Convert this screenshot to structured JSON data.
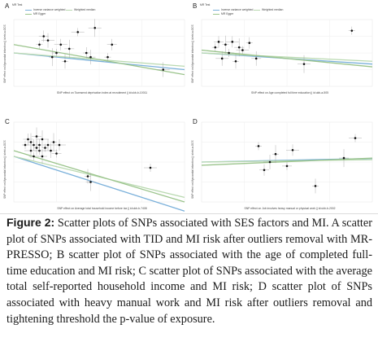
{
  "figure": {
    "legend_title": "MR Test",
    "legend_items": [
      {
        "label": "Inverse variance weighted",
        "color": "#7ab0da"
      },
      {
        "label": "Weighted median",
        "color": "#b9d9b0"
      },
      {
        "label": "MR Egger",
        "color": "#9bc48c"
      }
    ],
    "panels": [
      {
        "letter": "A",
        "ylabel": "SNP effect on Myocardial infarction || id:ebi-a-GCST011364",
        "xlabel": "SNP effect on Townsend deprivation index at recruitment || id:ukb-b-10011"
      },
      {
        "letter": "B",
        "ylabel": "SNP effect on Myocardial infarction || id:ebi-a-GCST011364",
        "xlabel": "SNP effect on Age completed full time education || id:ukb-a-505"
      },
      {
        "letter": "C",
        "ylabel": "SNP effect on Myocardial infarction || id:ebi-a-GCST011364",
        "xlabel": "SNP effect on Average total household income before tax || id:ukb-b-7408"
      },
      {
        "letter": "D",
        "ylabel": "SNP effect on Myocardial infarction || id:ebi-a-GCST011364",
        "xlabel": "SNP effect on Job involves heavy manual or physical work || id:ukb-b-2002"
      }
    ]
  },
  "caption": {
    "label": "Figure 2:",
    "text": "Scatter plots of SNPs associated with SES factors and MI. A scatter plot of SNPs associated with TID and MI risk after outliers removal with MR-PRESSO; B scatter plot of SNPs associated with the age of completed full-time education and MI risk; C scatter plot of SNPs associated with the average total self-reported household income and MI risk; D scatter plot of SNPs associated with heavy manual work and MI risk after outliers removal and tightening threshold the p-value of exposure."
  },
  "chart_data": [
    {
      "type": "scatter",
      "panel": "A",
      "xlabel": "SNP effect on Townsend deprivation index at recruitment || id:ukb-b-10011",
      "ylabel": "SNP effect on Myocardial infarction || id:ebi-a-GCST011364",
      "xlim": [
        0.0,
        0.04
      ],
      "ylim": [
        -0.08,
        0.08
      ],
      "x": [
        0.006,
        0.007,
        0.008,
        0.009,
        0.01,
        0.011,
        0.012,
        0.013,
        0.015,
        0.017,
        0.018,
        0.019,
        0.022,
        0.023,
        0.035
      ],
      "y": [
        0.02,
        0.04,
        0.03,
        -0.01,
        0.0,
        0.02,
        -0.02,
        0.01,
        0.05,
        0.0,
        -0.01,
        0.06,
        -0.01,
        0.02,
        -0.04
      ],
      "lines": [
        {
          "name": "Inverse variance weighted",
          "slope": -1.0,
          "intercept": 0
        },
        {
          "name": "Weighted median",
          "slope": -0.8,
          "intercept": 0
        },
        {
          "name": "MR Egger",
          "slope": -1.8,
          "intercept": 0.02
        }
      ]
    },
    {
      "type": "scatter",
      "panel": "B",
      "xlabel": "SNP effect on Age completed full time education || id:ukb-a-505",
      "ylabel": "SNP effect on Myocardial infarction || id:ebi-a-GCST011364",
      "xlim": [
        0.0,
        0.05
      ],
      "ylim": [
        -0.06,
        0.06
      ],
      "x": [
        0.004,
        0.005,
        0.006,
        0.007,
        0.008,
        0.009,
        0.01,
        0.011,
        0.012,
        0.014,
        0.016,
        0.03,
        0.044
      ],
      "y": [
        0.01,
        0.02,
        -0.01,
        0.015,
        0.0,
        0.02,
        -0.015,
        0.01,
        0.005,
        0.018,
        -0.01,
        -0.02,
        0.04
      ],
      "lines": [
        {
          "name": "Inverse variance weighted",
          "slope": -0.4,
          "intercept": 0
        },
        {
          "name": "Weighted median",
          "slope": -0.3,
          "intercept": 0
        },
        {
          "name": "MR Egger",
          "slope": -0.6,
          "intercept": 0.005
        }
      ]
    },
    {
      "type": "scatter",
      "panel": "C",
      "xlabel": "SNP effect on Average total household income before tax || id:ukb-b-7408",
      "ylabel": "SNP effect on Myocardial infarction || id:ebi-a-GCST011364",
      "xlim": [
        0.0,
        0.06
      ],
      "ylim": [
        -0.08,
        0.06
      ],
      "x": [
        0.004,
        0.005,
        0.006,
        0.006,
        0.007,
        0.007,
        0.008,
        0.008,
        0.009,
        0.009,
        0.01,
        0.01,
        0.011,
        0.012,
        0.013,
        0.014,
        0.015,
        0.016,
        0.026,
        0.027,
        0.048
      ],
      "y": [
        0.02,
        0.03,
        0.01,
        0.025,
        0.0,
        0.02,
        0.015,
        0.035,
        0.01,
        0.02,
        0.0,
        0.03,
        0.015,
        0.02,
        0.01,
        0.025,
        0.005,
        0.02,
        -0.035,
        -0.045,
        -0.02
      ],
      "lines": [
        {
          "name": "Inverse variance weighted",
          "slope": -1.6,
          "intercept": 0
        },
        {
          "name": "Weighted median",
          "slope": -1.2,
          "intercept": 0
        },
        {
          "name": "MR Egger",
          "slope": -1.5,
          "intercept": 0.01
        }
      ]
    },
    {
      "type": "scatter",
      "panel": "D",
      "xlabel": "SNP effect on Job involves heavy manual or physical work || id:ukb-b-2002",
      "ylabel": "SNP effect on Myocardial infarction || id:ebi-a-GCST011364",
      "xlim": [
        0.0,
        0.03
      ],
      "ylim": [
        -0.05,
        0.05
      ],
      "x": [
        0.01,
        0.011,
        0.012,
        0.013,
        0.015,
        0.016,
        0.02,
        0.025,
        0.027
      ],
      "y": [
        0.02,
        -0.01,
        0.0,
        0.01,
        -0.005,
        0.015,
        -0.03,
        0.005,
        0.03
      ],
      "lines": [
        {
          "name": "Inverse variance weighted",
          "slope": 0.15,
          "intercept": 0
        },
        {
          "name": "Weighted median",
          "slope": 0.1,
          "intercept": 0
        },
        {
          "name": "MR Egger",
          "slope": 0.3,
          "intercept": -0.004
        }
      ]
    }
  ]
}
